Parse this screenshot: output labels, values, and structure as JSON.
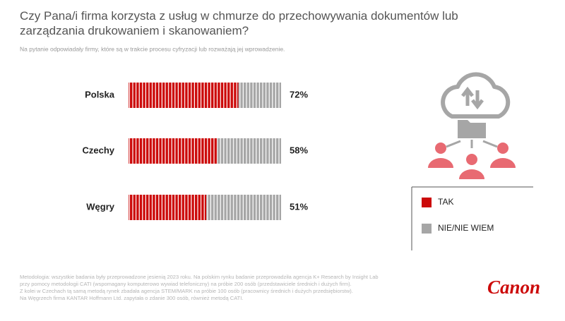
{
  "chart_data": {
    "type": "bar",
    "orientation": "horizontal",
    "stacked": true,
    "title": "Czy Pana/i firma korzysta z usług w chmurze do przechowywania dokumentów lub zarządzania drukowaniem i skanowaniem?",
    "subtitle": "Na pytanie odpowiadały firmy, które są w trakcie procesu cyfryzacji lub rozważają jej wprowadzenie.",
    "categories": [
      "Polska",
      "Czechy",
      "Węgry"
    ],
    "series": [
      {
        "name": "TAK",
        "color": "#cc0a0a",
        "values": [
          72,
          58,
          51
        ],
        "value_labels": [
          "72%",
          "58%",
          "51%"
        ]
      },
      {
        "name": "NIE/NIE WIEM",
        "color": "#a6a6a6",
        "values": [
          28,
          42,
          49
        ]
      }
    ],
    "xlim": [
      0,
      100
    ],
    "footnote": [
      "Metodologia: wszystkie badania były przeprowadzone jesienią 2023 roku. Na polskim rynku badanie przeprowadziła agencja K+ Research by Insight Lab",
      "przy pomocy metodologii CATI (wspomagany komputerowo wywiad telefoniczny) na próbie 200 osób (przedstawiciele średnich i dużych firm).",
      "Z kolei w Czechach tą samą metodą rynek zbadała agencja STEM/MARK na próbie 100 osób (pracownicy średnich i dużych przedsiębiorstw).",
      "Na Węgrzech firma KANTAR Hoffmann Ltd. zapytała o zdanie 300 osób, również metodą CATI."
    ],
    "brand": "Canon"
  }
}
